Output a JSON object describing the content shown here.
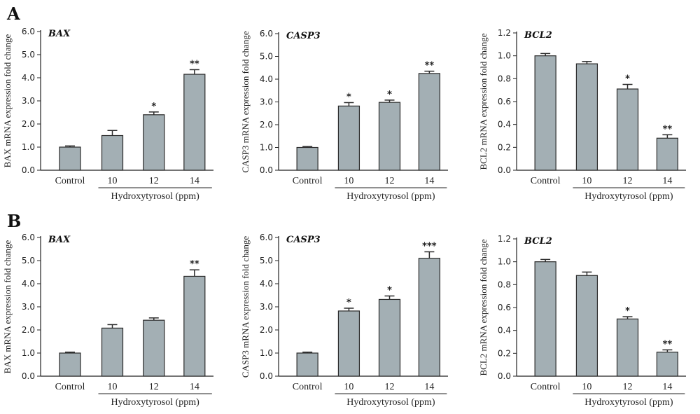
{
  "panel_labels": [
    "A",
    "B"
  ],
  "colors": {
    "bar": "#a3afb4",
    "bar_stroke": "#2a2a2a",
    "axis": "#222222"
  },
  "chart_data": [
    {
      "type": "bar",
      "panel": "A",
      "title": "BAX",
      "ylabel": "BAX mRNA expression fold change",
      "xgroup_label": "Hydroxytyrosol (ppm)",
      "categories": [
        "Control",
        "10",
        "12",
        "14"
      ],
      "values": [
        1.0,
        1.5,
        2.4,
        4.15
      ],
      "errors": [
        0.05,
        0.22,
        0.12,
        0.2
      ],
      "significance": [
        "",
        "",
        "*",
        "**"
      ],
      "ylim": [
        0,
        6
      ],
      "yticks": [
        "0.0",
        "1.0",
        "2.0",
        "3.0",
        "4.0",
        "5.0",
        "6.0"
      ]
    },
    {
      "type": "bar",
      "panel": "A",
      "title": "CASP3",
      "ylabel": "CASP3 mRNA expression fold change",
      "xgroup_label": "Hydroxytyrosol (ppm)",
      "categories": [
        "Control",
        "10",
        "12",
        "14"
      ],
      "values": [
        1.0,
        2.82,
        2.98,
        4.25
      ],
      "errors": [
        0.04,
        0.15,
        0.1,
        0.1
      ],
      "significance": [
        "",
        "*",
        "*",
        "**"
      ],
      "ylim": [
        0,
        6
      ],
      "yticks": [
        "0.0",
        "1.0",
        "2.0",
        "3.0",
        "4.0",
        "5.0",
        "6.0"
      ]
    },
    {
      "type": "bar",
      "panel": "A",
      "title": "BCL2",
      "ylabel": "BCL2 mRNA expression fold change",
      "xgroup_label": "Hydroxytyrosol (ppm)",
      "categories": [
        "Control",
        "10",
        "12",
        "14"
      ],
      "values": [
        1.0,
        0.93,
        0.71,
        0.28
      ],
      "errors": [
        0.02,
        0.02,
        0.04,
        0.03
      ],
      "significance": [
        "",
        "",
        "*",
        "**"
      ],
      "ylim": [
        0,
        1.2
      ],
      "yticks": [
        "0.0",
        "0.2",
        "0.4",
        "0.6",
        "0.8",
        "1.0",
        "1.2"
      ]
    },
    {
      "type": "bar",
      "panel": "B",
      "title": "BAX",
      "ylabel": "BAX mRNA expression fold change",
      "xgroup_label": "Hydroxytyrosol (ppm)",
      "categories": [
        "Control",
        "10",
        "12",
        "14"
      ],
      "values": [
        1.0,
        2.08,
        2.42,
        4.32
      ],
      "errors": [
        0.04,
        0.15,
        0.1,
        0.28
      ],
      "significance": [
        "",
        "",
        "",
        "**"
      ],
      "ylim": [
        0,
        6
      ],
      "yticks": [
        "0.0",
        "1.0",
        "2.0",
        "3.0",
        "4.0",
        "5.0",
        "6.0"
      ]
    },
    {
      "type": "bar",
      "panel": "B",
      "title": "CASP3",
      "ylabel": "CASP3 mRNA expression fold change",
      "xgroup_label": "Hydroxytyrosol (ppm)",
      "categories": [
        "Control",
        "10",
        "12",
        "14"
      ],
      "values": [
        1.0,
        2.82,
        3.32,
        5.1
      ],
      "errors": [
        0.04,
        0.12,
        0.15,
        0.28
      ],
      "significance": [
        "",
        "*",
        "*",
        "***"
      ],
      "ylim": [
        0,
        6
      ],
      "yticks": [
        "0.0",
        "1.0",
        "2.0",
        "3.0",
        "4.0",
        "5.0",
        "6.0"
      ]
    },
    {
      "type": "bar",
      "panel": "B",
      "title": "BCL2",
      "ylabel": "BCL2 mRNA expression fold change",
      "xgroup_label": "Hydroxytyrosol (ppm)",
      "categories": [
        "Control",
        "10",
        "12",
        "14"
      ],
      "values": [
        1.0,
        0.88,
        0.5,
        0.21
      ],
      "errors": [
        0.02,
        0.03,
        0.02,
        0.02
      ],
      "significance": [
        "",
        "",
        "*",
        "**"
      ],
      "ylim": [
        0,
        1.2
      ],
      "yticks": [
        "0.0",
        "0.2",
        "0.4",
        "0.6",
        "0.8",
        "1.0",
        "1.2"
      ]
    }
  ]
}
